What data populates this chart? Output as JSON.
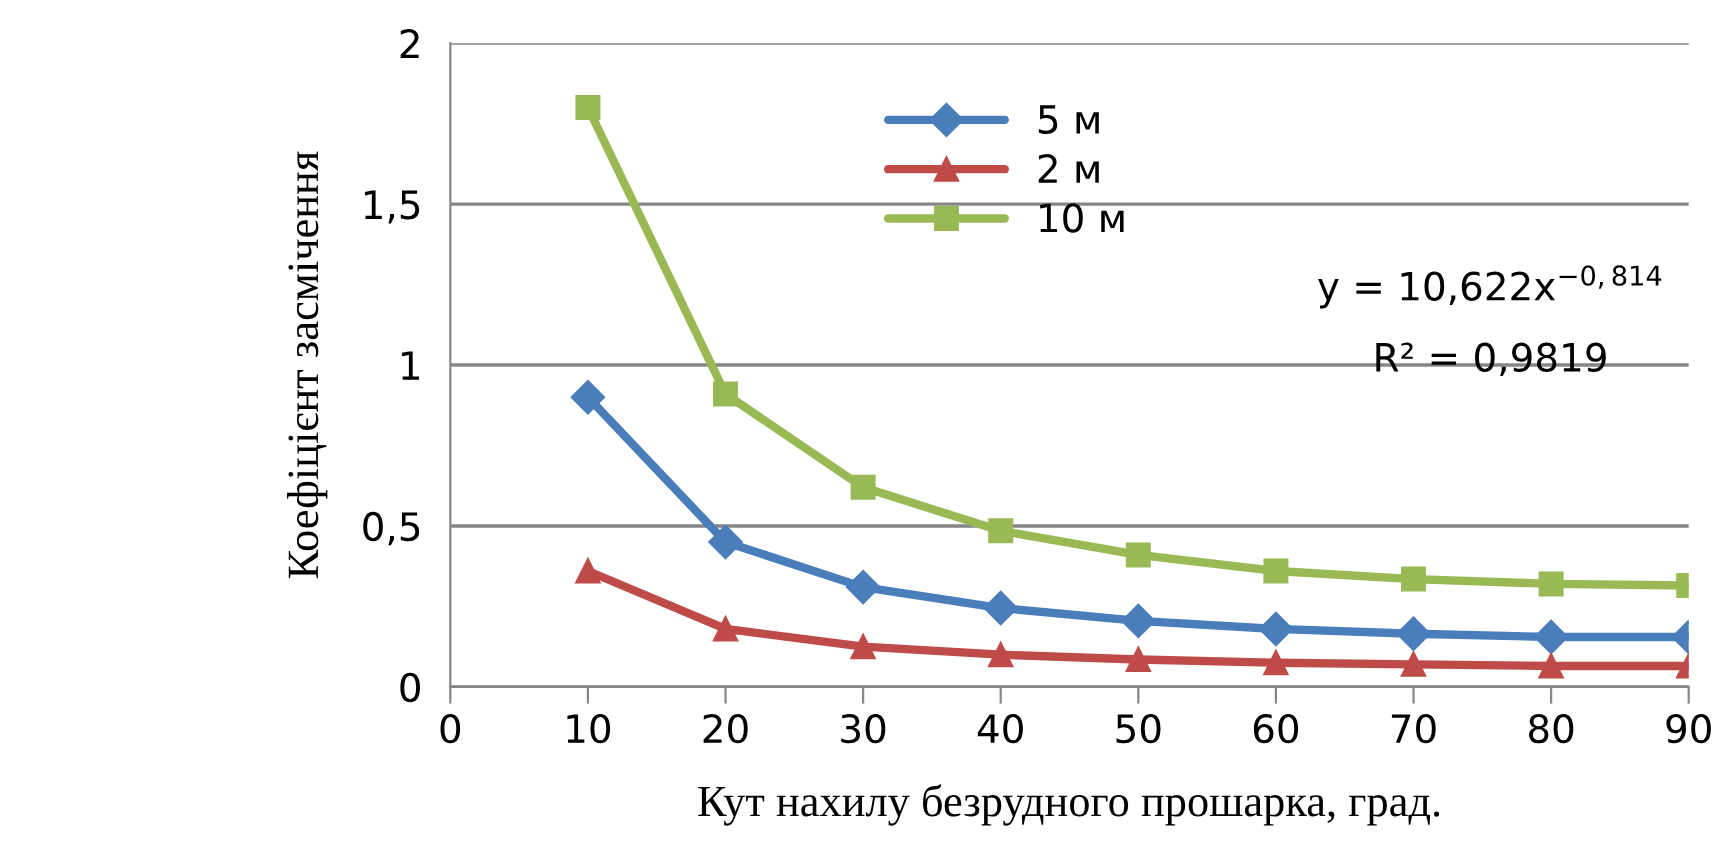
{
  "chart_data": {
    "type": "line",
    "xlabel": "Кут нахилу безрудного прошарка, град.",
    "ylabel": "Коефіцієнт засмічення",
    "x": [
      10,
      20,
      30,
      40,
      50,
      60,
      70,
      80,
      90
    ],
    "series": [
      {
        "name": "5 м",
        "color": "#4a7ebb",
        "marker": "diamond",
        "values": [
          0.9,
          0.45,
          0.31,
          0.245,
          0.205,
          0.18,
          0.165,
          0.155,
          0.155
        ]
      },
      {
        "name": "2 м",
        "color": "#be4b48",
        "marker": "triangle",
        "values": [
          0.36,
          0.18,
          0.125,
          0.1,
          0.085,
          0.075,
          0.07,
          0.065,
          0.065
        ]
      },
      {
        "name": "10 м",
        "color": "#98b954",
        "marker": "square",
        "values": [
          1.8,
          0.91,
          0.62,
          0.485,
          0.41,
          0.36,
          0.335,
          0.32,
          0.315
        ]
      }
    ],
    "xlim": [
      0,
      90
    ],
    "xticks": [
      0,
      10,
      20,
      30,
      40,
      50,
      60,
      70,
      80,
      90
    ],
    "ylim": [
      0,
      2
    ],
    "yticks": [
      0,
      {
        "value": 0.5,
        "label": "0,5"
      },
      1,
      {
        "value": 1.5,
        "label": "1,5"
      },
      2
    ],
    "grid": "y",
    "legend": "top",
    "line_style": "solid",
    "annotations": [
      "y = 10,622x$^{−0,814}$",
      "R² = 0,9819"
    ]
  }
}
